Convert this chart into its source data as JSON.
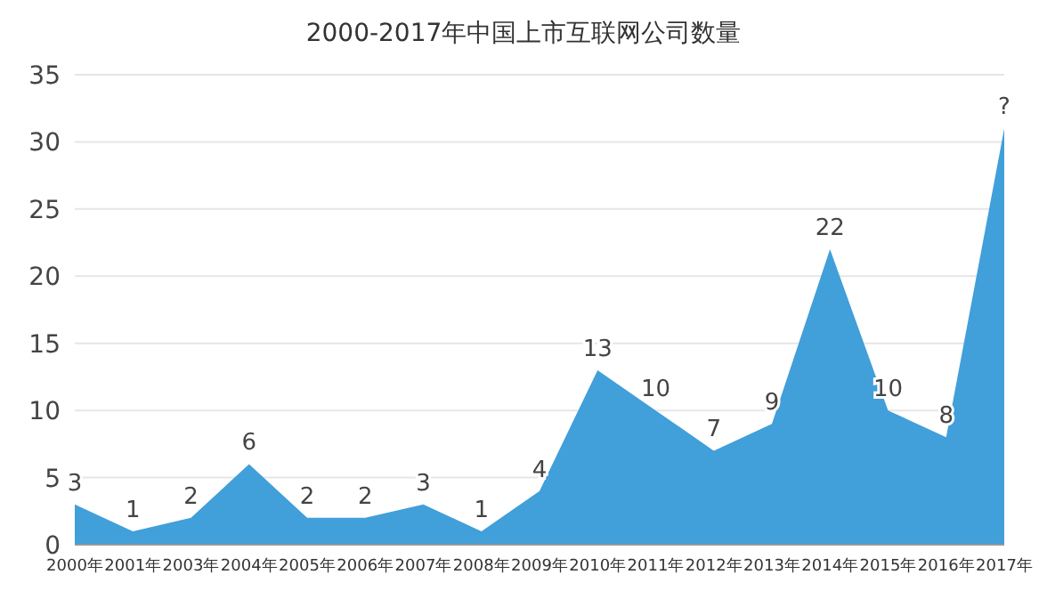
{
  "chart_data": {
    "type": "area",
    "title": "2000-2017年中国上市互联网公司数量",
    "categories": [
      "2000年",
      "2001年",
      "2003年",
      "2004年",
      "2005年",
      "2006年",
      "2007年",
      "2008年",
      "2009年",
      "2010年",
      "2011年",
      "2012年",
      "2013年",
      "2014年",
      "2015年",
      "2016年",
      "2017年"
    ],
    "values": [
      3,
      1,
      2,
      6,
      2,
      2,
      3,
      1,
      4,
      13,
      10,
      7,
      9,
      22,
      10,
      8,
      31
    ],
    "value_labels": [
      "3",
      "1",
      "2",
      "6",
      "2",
      "2",
      "3",
      "1",
      "4",
      "13",
      "10",
      "7",
      "9",
      "22",
      "10",
      "8",
      "?"
    ],
    "color": "#419fd9",
    "ylim": [
      0,
      35
    ],
    "yticks": [
      0,
      5,
      10,
      15,
      20,
      25,
      30,
      35
    ],
    "grid": "y"
  }
}
